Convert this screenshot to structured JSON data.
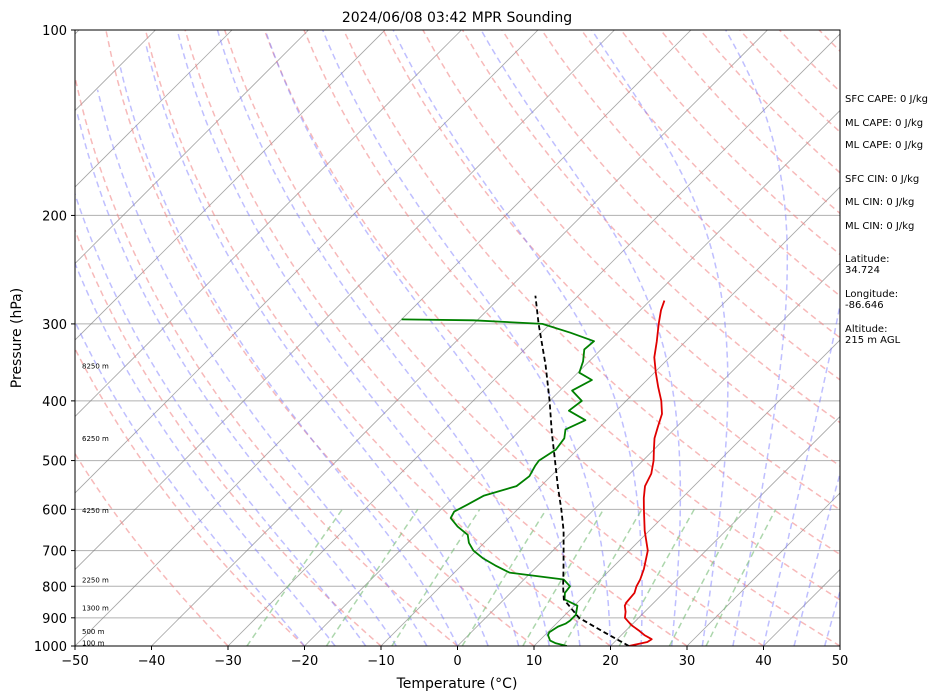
{
  "chart_data": {
    "type": "line",
    "chart_kind": "skew-t log-p sounding",
    "title": "2024/06/08 03:42 MPR Sounding",
    "xlabel": "Temperature (°C)",
    "ylabel": "Pressure (hPa)",
    "xlim": [
      -50,
      50
    ],
    "ylim_pressure": [
      1000,
      100
    ],
    "y_scale": "log",
    "grid": true,
    "x_ticks": [
      "−50",
      "−40",
      "−30",
      "−20",
      "−10",
      "0",
      "10",
      "20",
      "30",
      "40",
      "50"
    ],
    "x_tick_values": [
      -50,
      -40,
      -30,
      -20,
      -10,
      0,
      10,
      20,
      30,
      40,
      50
    ],
    "y_ticks": [
      "100",
      "200",
      "300",
      "400",
      "500",
      "600",
      "700",
      "800",
      "900",
      "1000"
    ],
    "y_tick_values": [
      100,
      200,
      300,
      400,
      500,
      600,
      700,
      800,
      900,
      1000
    ],
    "colors": {
      "temperature": "#e00000",
      "dewpoint": "#008000",
      "parcel": "#000000",
      "dry_adiabat": "#f08080",
      "moist_adiabat": "#8080ff",
      "mixing_ratio": "#80c080",
      "isotherm": "#808080"
    },
    "series": [
      {
        "key": "temperature",
        "points": [
          [
            1000,
            22.4
          ],
          [
            985,
            24.3
          ],
          [
            975,
            24.5
          ],
          [
            960,
            23.0
          ],
          [
            945,
            21.8
          ],
          [
            925,
            20.0
          ],
          [
            900,
            18.2
          ],
          [
            880,
            17.5
          ],
          [
            860,
            16.6
          ],
          [
            850,
            16.4
          ],
          [
            820,
            16.2
          ],
          [
            800,
            15.6
          ],
          [
            780,
            15.2
          ],
          [
            750,
            14.3
          ],
          [
            700,
            12.4
          ],
          [
            650,
            9.4
          ],
          [
            600,
            6.5
          ],
          [
            575,
            5.0
          ],
          [
            550,
            3.6
          ],
          [
            525,
            2.8
          ],
          [
            500,
            1.4
          ],
          [
            480,
            0.0
          ],
          [
            460,
            -1.4
          ],
          [
            440,
            -2.5
          ],
          [
            420,
            -3.6
          ],
          [
            400,
            -5.4
          ],
          [
            380,
            -7.6
          ],
          [
            360,
            -9.8
          ],
          [
            340,
            -12.0
          ],
          [
            320,
            -13.8
          ],
          [
            300,
            -15.8
          ],
          [
            285,
            -17.3
          ],
          [
            275,
            -18.1
          ]
        ]
      },
      {
        "key": "dewpoint",
        "points": [
          [
            1000,
            14.3
          ],
          [
            990,
            12.5
          ],
          [
            980,
            11.4
          ],
          [
            960,
            10.4
          ],
          [
            950,
            10.2
          ],
          [
            930,
            10.6
          ],
          [
            920,
            11.2
          ],
          [
            910,
            11.4
          ],
          [
            890,
            11.4
          ],
          [
            875,
            10.9
          ],
          [
            860,
            10.4
          ],
          [
            840,
            7.9
          ],
          [
            820,
            7.1
          ],
          [
            800,
            6.9
          ],
          [
            780,
            5.2
          ],
          [
            760,
            -2.8
          ],
          [
            740,
            -5.6
          ],
          [
            720,
            -8.2
          ],
          [
            700,
            -10.4
          ],
          [
            680,
            -12.0
          ],
          [
            660,
            -13.2
          ],
          [
            640,
            -15.6
          ],
          [
            620,
            -17.6
          ],
          [
            605,
            -18.0
          ],
          [
            590,
            -17.2
          ],
          [
            570,
            -16.2
          ],
          [
            550,
            -13.2
          ],
          [
            530,
            -12.8
          ],
          [
            510,
            -13.4
          ],
          [
            500,
            -13.6
          ],
          [
            480,
            -12.8
          ],
          [
            460,
            -13.2
          ],
          [
            445,
            -14.2
          ],
          [
            430,
            -12.8
          ],
          [
            415,
            -16.2
          ],
          [
            400,
            -15.8
          ],
          [
            385,
            -18.4
          ],
          [
            370,
            -17.2
          ],
          [
            360,
            -19.8
          ],
          [
            345,
            -20.8
          ],
          [
            330,
            -22.2
          ],
          [
            320,
            -22.0
          ],
          [
            310,
            -26.2
          ],
          [
            300,
            -31.0
          ],
          [
            296,
            -40.5
          ],
          [
            295,
            -50.0
          ]
        ]
      },
      {
        "key": "parcel",
        "points": [
          [
            1000,
            22.4
          ],
          [
            950,
            17.4
          ],
          [
            900,
            12.2
          ],
          [
            840,
            7.8
          ],
          [
            800,
            6.0
          ],
          [
            750,
            3.8
          ],
          [
            700,
            1.4
          ],
          [
            650,
            -1.2
          ],
          [
            600,
            -4.3
          ],
          [
            550,
            -7.8
          ],
          [
            500,
            -11.5
          ],
          [
            450,
            -15.6
          ],
          [
            400,
            -20.0
          ],
          [
            350,
            -25.2
          ],
          [
            300,
            -31.5
          ],
          [
            270,
            -35.6
          ]
        ]
      }
    ],
    "height_labels": [
      {
        "label": "100 m",
        "pressure": 988
      },
      {
        "label": "500 m",
        "pressure": 947
      },
      {
        "label": "1300 m",
        "pressure": 867
      },
      {
        "label": "2250 m",
        "pressure": 781
      },
      {
        "label": "4250 m",
        "pressure": 603
      },
      {
        "label": "6250 m",
        "pressure": 460
      },
      {
        "label": "8250 m",
        "pressure": 351
      }
    ],
    "annotations": [
      "SFC CAPE: 0 J/kg",
      "ML CAPE: 0 J/kg",
      "ML CAPE: 0 J/kg",
      "SFC CIN: 0 J/kg",
      "ML CIN: 0 J/kg",
      "ML CIN: 0 J/kg",
      "Latitude:",
      "34.724",
      "Longitude:",
      "-86.646",
      "Altitude:",
      "215 m AGL"
    ]
  }
}
